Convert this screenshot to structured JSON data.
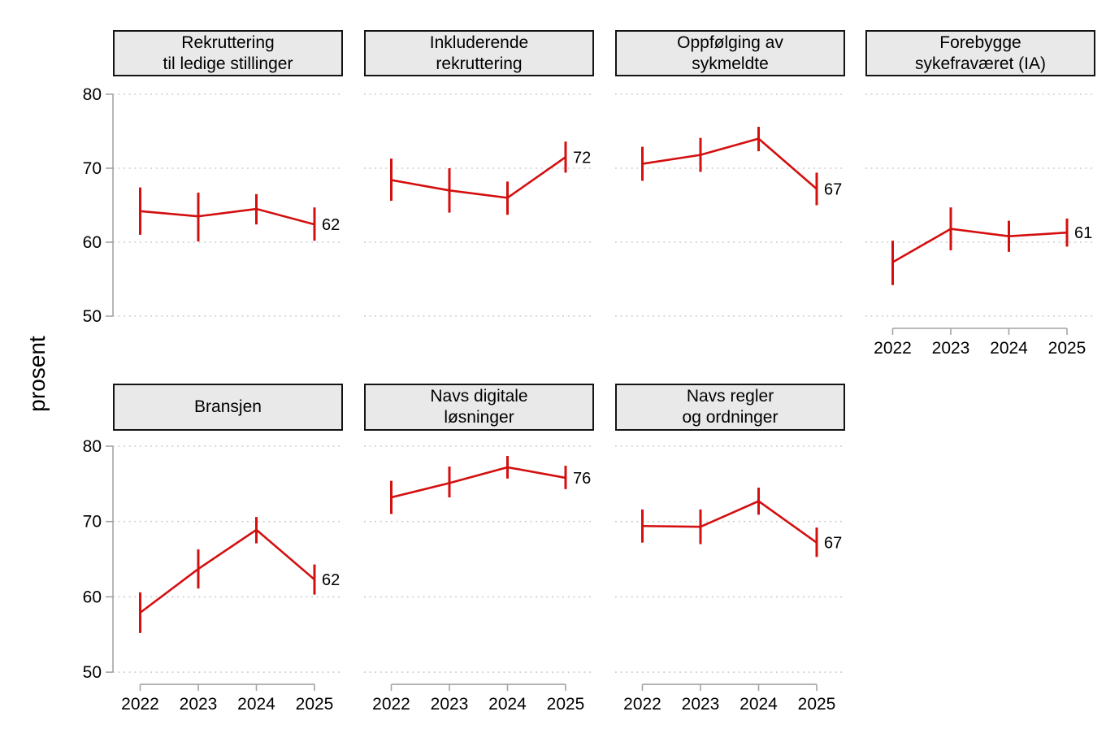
{
  "chart_data": {
    "type": "line",
    "ylabel": "prosent",
    "x_categories": [
      "2022",
      "2023",
      "2024",
      "2025"
    ],
    "yticks": [
      80,
      70,
      60,
      50
    ],
    "ylim": [
      50,
      80
    ],
    "grid": "horizontal-dotted",
    "legend_position": "none",
    "line_color": "#d40f0f",
    "panels": [
      {
        "title_lines": [
          "Rekruttering",
          "til ledige stillinger"
        ],
        "row": 0,
        "col": 0,
        "show_xaxis": false,
        "values": [
          64.2,
          63.5,
          64.5,
          62.4
        ],
        "ci_low": [
          61.0,
          60.1,
          62.4,
          60.2
        ],
        "ci_high": [
          67.4,
          66.7,
          66.5,
          64.7
        ],
        "end_label": "62"
      },
      {
        "title_lines": [
          "Inkluderende",
          "rekruttering"
        ],
        "row": 0,
        "col": 1,
        "show_xaxis": false,
        "values": [
          68.4,
          67.0,
          66.0,
          71.5
        ],
        "ci_low": [
          65.6,
          64.0,
          63.7,
          69.4
        ],
        "ci_high": [
          71.3,
          70.0,
          68.2,
          73.6
        ],
        "end_label": "72"
      },
      {
        "title_lines": [
          "Oppfølging av",
          "sykmeldte"
        ],
        "row": 0,
        "col": 2,
        "show_xaxis": false,
        "values": [
          70.6,
          71.8,
          74.0,
          67.2
        ],
        "ci_low": [
          68.3,
          69.5,
          72.3,
          65.0
        ],
        "ci_high": [
          72.9,
          74.1,
          75.6,
          69.4
        ],
        "end_label": "67"
      },
      {
        "title_lines": [
          "Forebygge",
          "sykefraværet (IA)"
        ],
        "row": 0,
        "col": 3,
        "show_xaxis": true,
        "values": [
          57.3,
          61.8,
          60.8,
          61.3
        ],
        "ci_low": [
          54.2,
          58.9,
          58.7,
          59.4
        ],
        "ci_high": [
          60.2,
          64.7,
          62.9,
          63.2
        ],
        "end_label": "61"
      },
      {
        "title_lines": [
          "Bransjen"
        ],
        "row": 1,
        "col": 0,
        "show_xaxis": true,
        "values": [
          57.9,
          63.7,
          68.9,
          62.3
        ],
        "ci_low": [
          55.2,
          61.1,
          67.1,
          60.3
        ],
        "ci_high": [
          60.6,
          66.3,
          70.6,
          64.3
        ],
        "end_label": "62"
      },
      {
        "title_lines": [
          "Navs digitale",
          "løsninger"
        ],
        "row": 1,
        "col": 1,
        "show_xaxis": true,
        "values": [
          73.2,
          75.1,
          77.2,
          75.8
        ],
        "ci_low": [
          71.0,
          73.2,
          75.7,
          74.3
        ],
        "ci_high": [
          75.4,
          77.3,
          78.7,
          77.4
        ],
        "end_label": "76"
      },
      {
        "title_lines": [
          "Navs regler",
          "og ordninger"
        ],
        "row": 1,
        "col": 2,
        "show_xaxis": true,
        "values": [
          69.4,
          69.3,
          72.7,
          67.2
        ],
        "ci_low": [
          67.2,
          67.0,
          70.9,
          65.3
        ],
        "ci_high": [
          71.6,
          71.6,
          74.5,
          69.2
        ],
        "end_label": "67"
      }
    ]
  },
  "colors": {
    "line": "#d40f0f",
    "grid": "#c9c9c9",
    "axis": "#a3a3a3",
    "header_bg": "#e9e9e9",
    "header_border": "#141414",
    "text": "#000000"
  }
}
